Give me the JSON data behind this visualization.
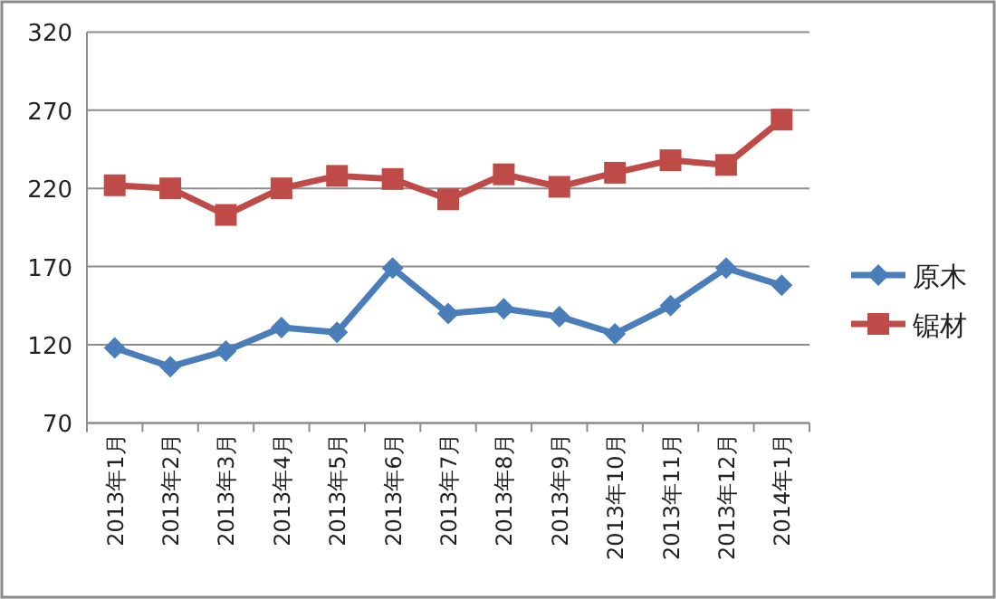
{
  "chart_data": {
    "type": "line",
    "categories": [
      "2013年1月",
      "2013年2月",
      "2013年3月",
      "2013年4月",
      "2013年5月",
      "2013年6月",
      "2013年7月",
      "2013年8月",
      "2013年9月",
      "2013年10月",
      "2013年11月",
      "2013年12月",
      "2014年1月"
    ],
    "series": [
      {
        "name": "原木",
        "color": "#4a7ebb",
        "marker": "diamond",
        "values": [
          118,
          106,
          116,
          131,
          128,
          169,
          140,
          143,
          138,
          127,
          145,
          169,
          158
        ]
      },
      {
        "name": "锯材",
        "color": "#be4b48",
        "marker": "square",
        "values": [
          222,
          220,
          203,
          220,
          228,
          226,
          213,
          229,
          221,
          230,
          238,
          235,
          264
        ]
      }
    ],
    "ylim": [
      70,
      320
    ],
    "yticks": [
      70,
      120,
      170,
      220,
      270,
      320
    ],
    "grid": "y",
    "legend": "right"
  }
}
